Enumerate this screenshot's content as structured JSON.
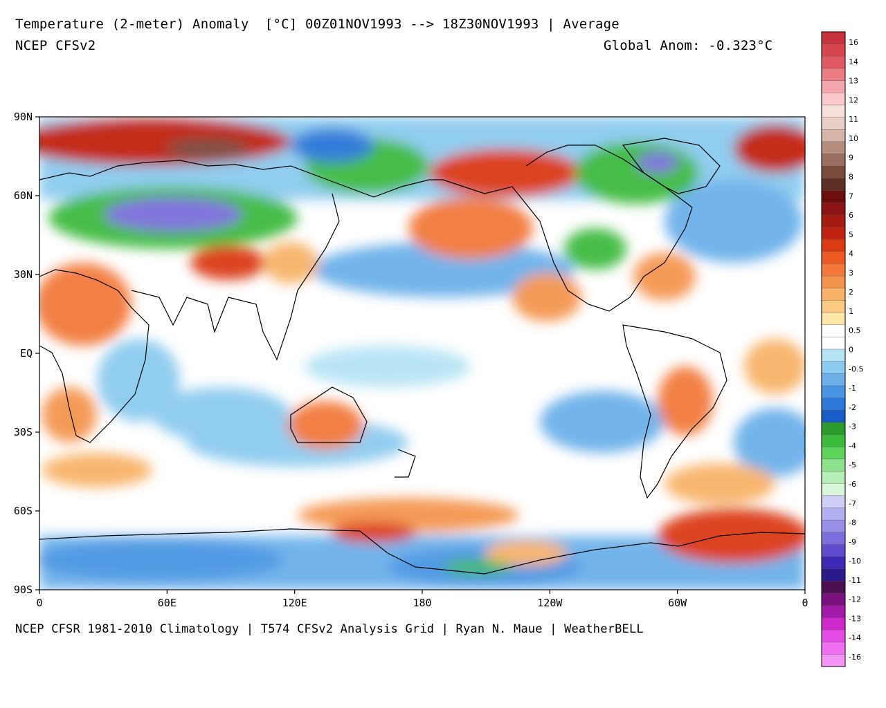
{
  "header": {
    "title": "Temperature (2-meter) Anomaly  [°C] 00Z01NOV1993 --> 18Z30NOV1993 | Average",
    "model": "NCEP CFSv2",
    "global_anomaly": "Global Anom: -0.323°C"
  },
  "footer": {
    "credit": "NCEP CFSR 1981-2010 Climatology | T574 CFSv2 Analysis Grid | Ryan N. Maue | WeatherBELL"
  },
  "map": {
    "lat_labels": [
      "90N",
      "60N",
      "30N",
      "EQ",
      "30S",
      "60S",
      "90S"
    ],
    "lon_labels": [
      "0",
      "60E",
      "120E",
      "180",
      "120W",
      "60W",
      "0"
    ],
    "colors": {
      "ocean_neutral": "#ffffff",
      "coast": "#000000"
    }
  },
  "colorbar": {
    "labels": [
      "16",
      "14",
      "13",
      "12",
      "11",
      "10",
      "9",
      "8",
      "7",
      "6",
      "5",
      "4",
      "3",
      "2",
      "1",
      "0.5",
      "0",
      "-0.5",
      "-1",
      "-2",
      "-3",
      "-4",
      "-5",
      "-6",
      "-7",
      "-8",
      "-9",
      "-10",
      "-11",
      "-12",
      "-13",
      "-14",
      "-16"
    ],
    "colors": [
      "#c8323c",
      "#d5464e",
      "#e05a63",
      "#ea7c84",
      "#f4a5ab",
      "#fbc9cc",
      "#f6e0da",
      "#e8cfc6",
      "#d6b4a8",
      "#b68c7d",
      "#9a6e61",
      "#7a4a3c",
      "#5c2e24",
      "#6e0d0d",
      "#8a1414",
      "#a51a10",
      "#c02410",
      "#db3a12",
      "#ec5a22",
      "#f2793a",
      "#f4954f",
      "#f8b268",
      "#fbcb83",
      "#fde8a8",
      "#ffffff",
      "#ffffff",
      "#b6e4f5",
      "#8ccbef",
      "#6cb0ea",
      "#4a95e3",
      "#2c78d8",
      "#1a5cc8",
      "#2a9a2a",
      "#3cba3c",
      "#5cd45c",
      "#8ce28c",
      "#b6eeb6",
      "#d8f6d8",
      "#cfcff6",
      "#b2b0ee",
      "#9890e6",
      "#7c6edc",
      "#5e4ccc",
      "#3c2ab4",
      "#2a1a8c",
      "#4a1050",
      "#7a1080",
      "#a41aa8",
      "#cc28cc",
      "#e44ae4",
      "#f06ef0",
      "#f494f4"
    ]
  }
}
